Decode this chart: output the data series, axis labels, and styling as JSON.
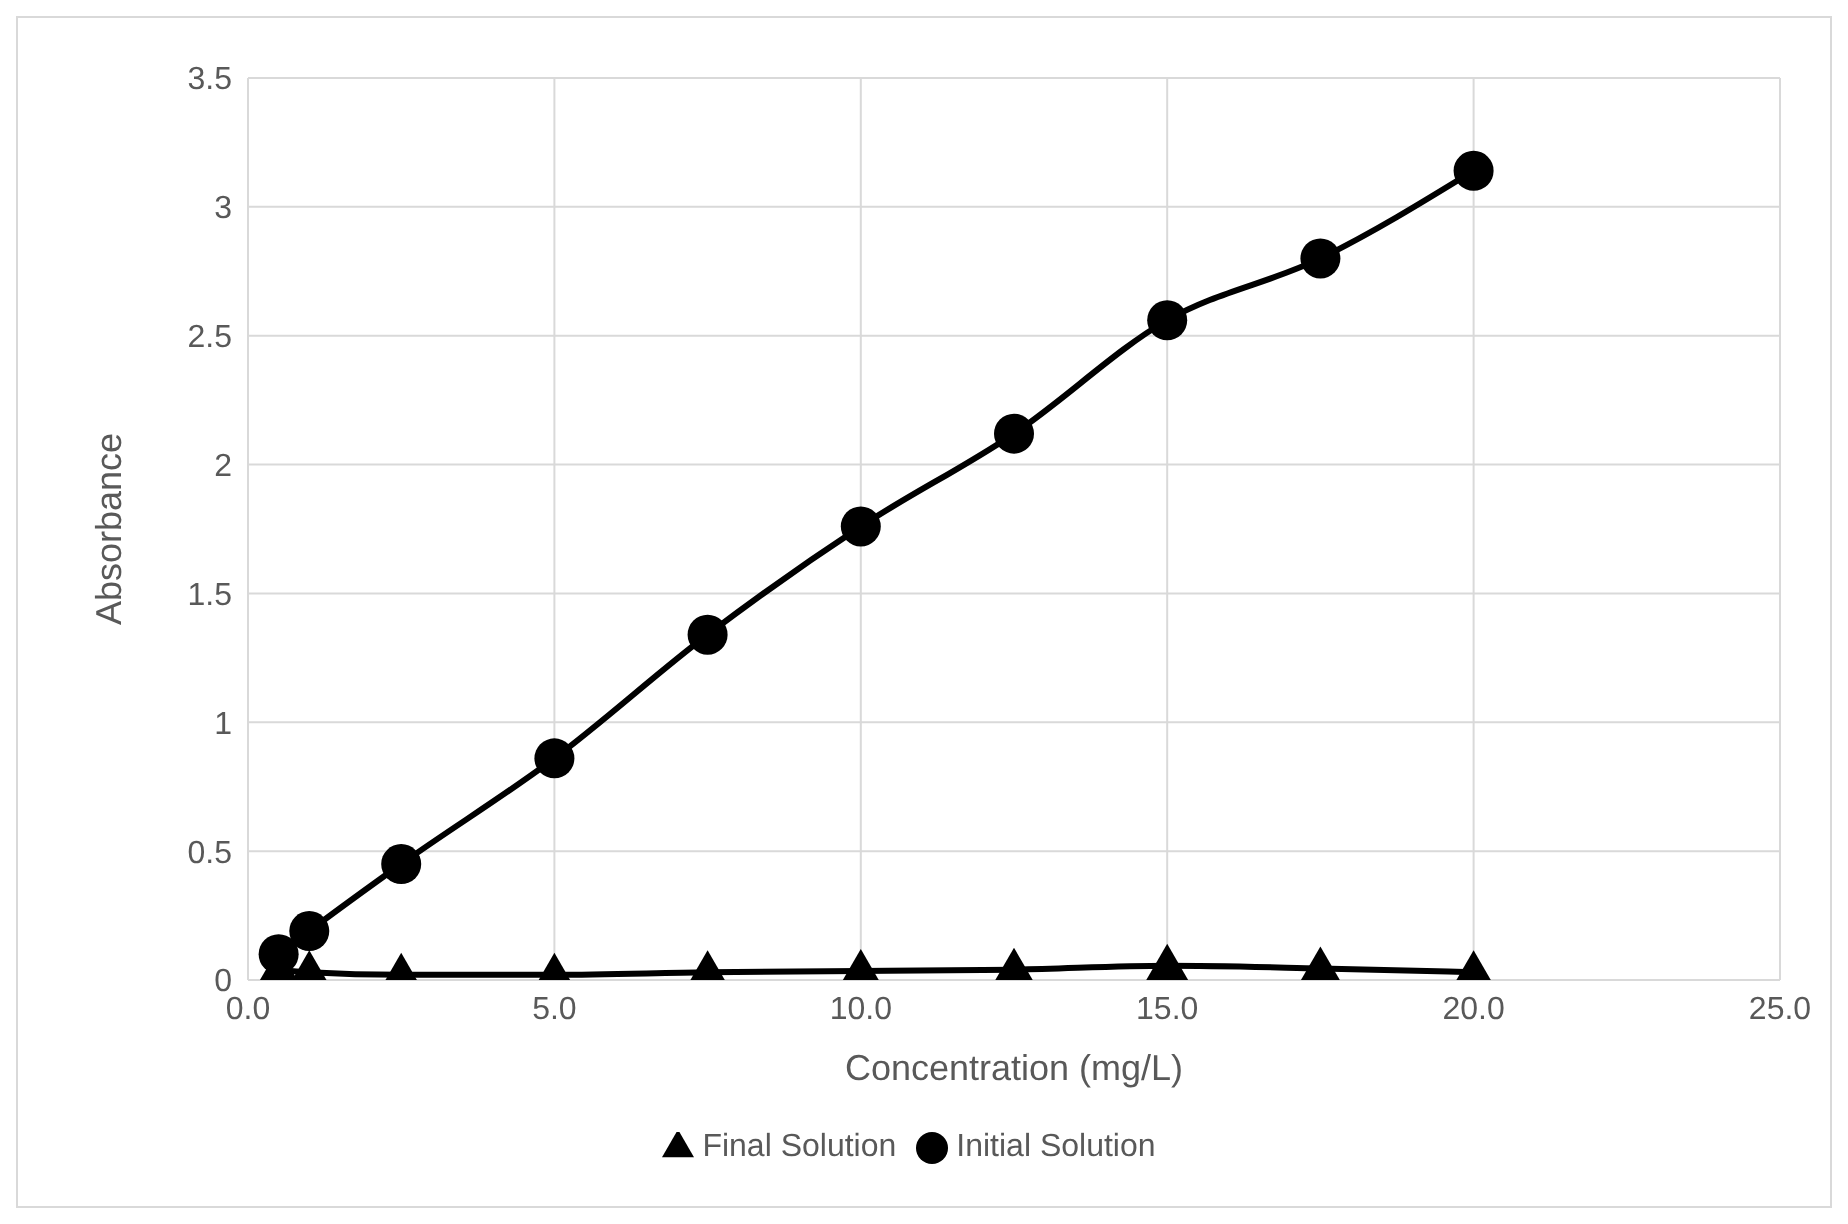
{
  "chart_data": {
    "type": "line",
    "xlabel": "Concentration (mg/L)",
    "ylabel": "Absorbance",
    "x": [
      0.5,
      1,
      2.5,
      5,
      7.5,
      10,
      12.5,
      15,
      17.5,
      20
    ],
    "series": [
      {
        "name": "Initial Solution",
        "color": "#000000",
        "marker": "circle",
        "values": [
          0.1,
          0.19,
          0.45,
          0.86,
          1.34,
          1.76,
          2.12,
          2.56,
          2.8,
          3.14
        ]
      },
      {
        "name": "Final Solution",
        "color": "#000000",
        "marker": "triangle",
        "values": [
          0.04,
          0.03,
          0.02,
          0.02,
          0.03,
          0.035,
          0.04,
          0.055,
          0.045,
          0.03
        ]
      }
    ],
    "xlim": [
      0,
      25
    ],
    "xticks": [
      {
        "value": 0,
        "label": "0.0"
      },
      {
        "value": 5,
        "label": "5.0"
      },
      {
        "value": 10,
        "label": "10.0"
      },
      {
        "value": 15,
        "label": "15.0"
      },
      {
        "value": 20,
        "label": "20.0"
      },
      {
        "value": 25,
        "label": "25.0"
      }
    ],
    "ylim": [
      0,
      3.5
    ],
    "yticks": [
      0,
      0.5,
      1,
      1.5,
      2,
      2.5,
      3,
      3.5
    ],
    "grid": true,
    "legend": "bottom",
    "line_style": "solid"
  }
}
